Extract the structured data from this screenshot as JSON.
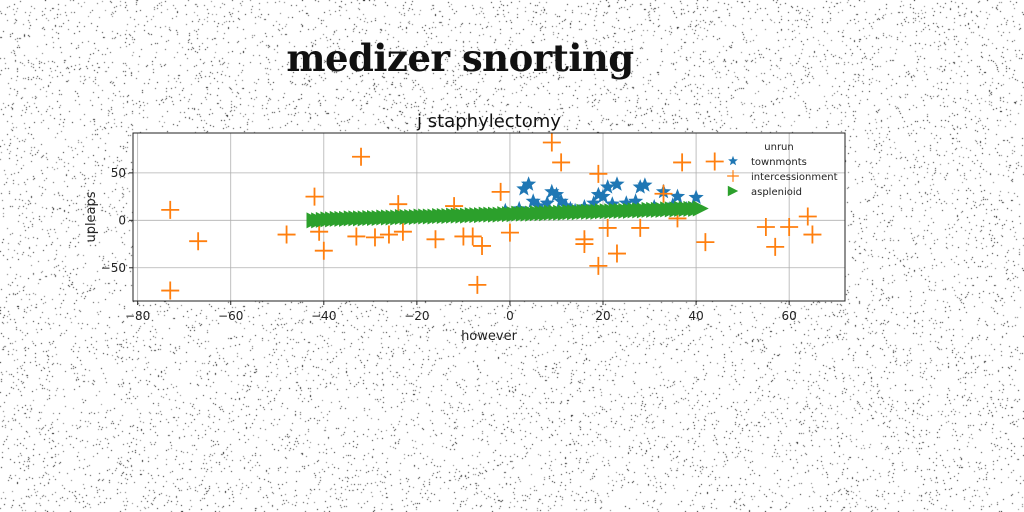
{
  "page": {
    "title": "medizer snorting"
  },
  "chart_data": {
    "type": "scatter",
    "title": "j staphylectomy",
    "xlabel": "however",
    "ylabel": "upleaps",
    "xlim": [
      -81,
      72
    ],
    "ylim": [
      -85,
      92
    ],
    "xticks": [
      -80,
      -60,
      -40,
      -20,
      0,
      20,
      40,
      60
    ],
    "yticks": [
      -50,
      0,
      50
    ],
    "grid": true,
    "legend": {
      "title": "unrun",
      "position": "upper-right"
    },
    "series": [
      {
        "name": "townmonts",
        "marker": "star",
        "color": "#1f77b4",
        "points": [
          [
            -1,
            10
          ],
          [
            2,
            12
          ],
          [
            3,
            33
          ],
          [
            4,
            38
          ],
          [
            5,
            20
          ],
          [
            6,
            15
          ],
          [
            7,
            8
          ],
          [
            8,
            18
          ],
          [
            9,
            30
          ],
          [
            10,
            27
          ],
          [
            11,
            20
          ],
          [
            12,
            15
          ],
          [
            13,
            12
          ],
          [
            14,
            10
          ],
          [
            16,
            14
          ],
          [
            18,
            18
          ],
          [
            19,
            27
          ],
          [
            20,
            25
          ],
          [
            21,
            35
          ],
          [
            22,
            17
          ],
          [
            23,
            38
          ],
          [
            25,
            18
          ],
          [
            27,
            20
          ],
          [
            28,
            35
          ],
          [
            29,
            37
          ],
          [
            31,
            14
          ],
          [
            33,
            30
          ],
          [
            35,
            16
          ],
          [
            36,
            25
          ],
          [
            38,
            12
          ],
          [
            40,
            24
          ]
        ]
      },
      {
        "name": "intercessionment",
        "marker": "plus",
        "color": "#ff7f0e",
        "points": [
          [
            -73,
            11
          ],
          [
            -73,
            -74
          ],
          [
            -67,
            -22
          ],
          [
            -48,
            -15
          ],
          [
            -42,
            25
          ],
          [
            -41,
            -12
          ],
          [
            -40,
            -32
          ],
          [
            -33,
            -17
          ],
          [
            -32,
            67
          ],
          [
            -29,
            -18
          ],
          [
            -26,
            -15
          ],
          [
            -24,
            17
          ],
          [
            -23,
            -12
          ],
          [
            -16,
            -20
          ],
          [
            -12,
            15
          ],
          [
            -10,
            -17
          ],
          [
            -8,
            -17
          ],
          [
            -7,
            -68
          ],
          [
            -6,
            -27
          ],
          [
            -2,
            30
          ],
          [
            0,
            -13
          ],
          [
            9,
            82
          ],
          [
            11,
            61
          ],
          [
            16,
            -20
          ],
          [
            16,
            -25
          ],
          [
            19,
            49
          ],
          [
            19,
            -48
          ],
          [
            21,
            -8
          ],
          [
            23,
            -35
          ],
          [
            28,
            -8
          ],
          [
            33,
            28
          ],
          [
            36,
            2
          ],
          [
            37,
            61
          ],
          [
            42,
            -23
          ],
          [
            44,
            62
          ],
          [
            55,
            -7
          ],
          [
            57,
            -28
          ],
          [
            60,
            -7
          ],
          [
            64,
            4
          ],
          [
            65,
            -15
          ]
        ]
      },
      {
        "name": "asplenioid",
        "marker": "triangle-right",
        "color": "#2ca02c",
        "points": [
          [
            -42,
            0
          ],
          [
            -41,
            0
          ],
          [
            -40,
            0.5
          ],
          [
            -39,
            1
          ],
          [
            -38,
            1
          ],
          [
            -37,
            1.5
          ],
          [
            -36,
            1.5
          ],
          [
            -35,
            1.5
          ],
          [
            -34,
            2
          ],
          [
            -33,
            2
          ],
          [
            -32,
            2
          ],
          [
            -31,
            2
          ],
          [
            -30,
            2.5
          ],
          [
            -29,
            2.5
          ],
          [
            -28,
            2.5
          ],
          [
            -27,
            3
          ],
          [
            -26,
            3
          ],
          [
            -25,
            3
          ],
          [
            -24,
            3
          ],
          [
            -23,
            3.5
          ],
          [
            -22,
            3.5
          ],
          [
            -21,
            3.5
          ],
          [
            -20,
            3.5
          ],
          [
            -19,
            4
          ],
          [
            -18,
            4
          ],
          [
            -17,
            4
          ],
          [
            -16,
            4
          ],
          [
            -15,
            4.5
          ],
          [
            -14,
            4.5
          ],
          [
            -13,
            4.5
          ],
          [
            -12,
            5
          ],
          [
            -11,
            5
          ],
          [
            -10,
            5
          ],
          [
            -9,
            5
          ],
          [
            -8,
            5.5
          ],
          [
            -7,
            5.5
          ],
          [
            -6,
            5.5
          ],
          [
            -5,
            6
          ],
          [
            -4,
            6
          ],
          [
            -3,
            6
          ],
          [
            -2,
            6
          ],
          [
            -1,
            6.5
          ],
          [
            0,
            6.5
          ],
          [
            1,
            6.5
          ],
          [
            2,
            7
          ],
          [
            3,
            7
          ],
          [
            4,
            7
          ],
          [
            5,
            7
          ],
          [
            6,
            7.5
          ],
          [
            7,
            7.5
          ],
          [
            8,
            7.5
          ],
          [
            9,
            8
          ],
          [
            10,
            8
          ],
          [
            11,
            8
          ],
          [
            12,
            8
          ],
          [
            13,
            8.5
          ],
          [
            14,
            8.5
          ],
          [
            15,
            8.5
          ],
          [
            16,
            9
          ],
          [
            17,
            9
          ],
          [
            18,
            9
          ],
          [
            19,
            9
          ],
          [
            20,
            9.5
          ],
          [
            21,
            9.5
          ],
          [
            22,
            9.5
          ],
          [
            23,
            10
          ],
          [
            24,
            10
          ],
          [
            25,
            10
          ],
          [
            26,
            10
          ],
          [
            27,
            10.5
          ],
          [
            28,
            10.5
          ],
          [
            29,
            10.5
          ],
          [
            30,
            11
          ],
          [
            31,
            11
          ],
          [
            32,
            11
          ],
          [
            33,
            11
          ],
          [
            34,
            11.5
          ],
          [
            35,
            11.5
          ],
          [
            36,
            11.5
          ],
          [
            37,
            12
          ],
          [
            38,
            12
          ],
          [
            39,
            12
          ],
          [
            40,
            12
          ],
          [
            41,
            12.5
          ]
        ]
      }
    ]
  }
}
